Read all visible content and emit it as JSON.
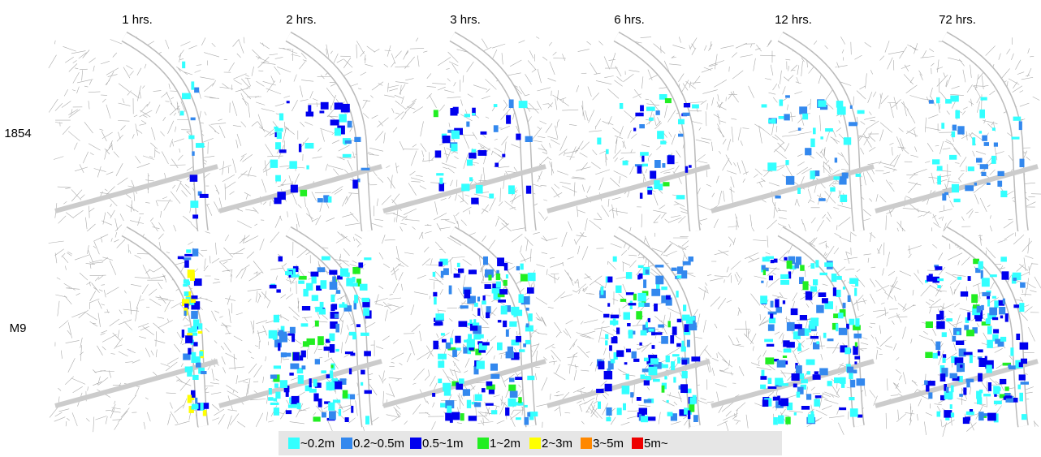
{
  "columns": [
    "1 hrs.",
    "2 hrs.",
    "3 hrs.",
    "6 hrs.",
    "12 hrs.",
    "72 hrs."
  ],
  "rows": [
    "1854",
    "M9"
  ],
  "legend": [
    {
      "label": "~0.2m",
      "color": "#33ffff"
    },
    {
      "label": "0.2~0.5m",
      "color": "#3388ee"
    },
    {
      "label": "0.5~1m",
      "color": "#0000ee"
    },
    {
      "label": "1~2m",
      "color": "#22ee22"
    },
    {
      "label": "2~3m",
      "color": "#ffff00"
    },
    {
      "label": "3~5m",
      "color": "#ff8800"
    },
    {
      "label": "5m~",
      "color": "#ee0000"
    }
  ]
}
